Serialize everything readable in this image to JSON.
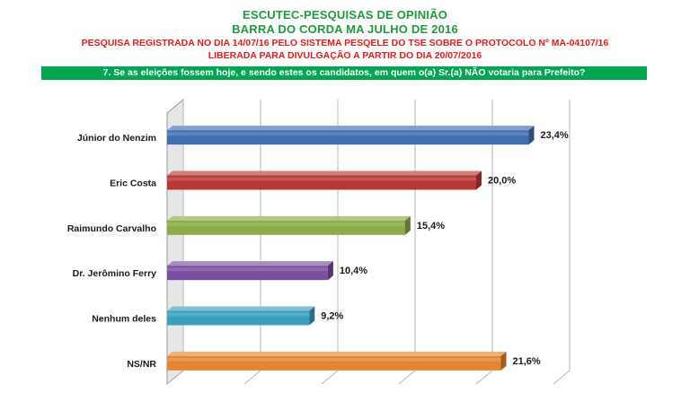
{
  "header": {
    "title_line1": "ESCUTEC-PESQUISAS DE OPINIÃO",
    "title_line2": "BARRA DO CORDA MA JULHO DE 2016",
    "registration": "PESQUISA REGISTRADA NO DIA 14/07/16 PELO SISTEMA PESQELE DO TSE SOBRE O PROTOCOLO Nº MA-04107/16",
    "release": "LIBERADA PARA DIVULGAÇÃO A PARTIR DO DIA 20/07/2016",
    "question": "7. Se as eleições fossem hoje, e sendo estes os candidatos, em quem o(a) Sr.(a) NÃO votaria para Prefeito?"
  },
  "colors": {
    "title_green": "#1f9a3c",
    "subtitle_red": "#e31b1b",
    "question_bg": "#00a650"
  },
  "chart_data": {
    "type": "bar",
    "orientation": "horizontal",
    "categories": [
      "Júnior do Nenzim",
      "Eric Costa",
      "Raimundo Carvalho",
      "Dr. Jerômino Ferry",
      "Nenhum deles",
      "NS/NR"
    ],
    "values": [
      23.4,
      20.0,
      15.4,
      10.4,
      9.2,
      21.6
    ],
    "labels": [
      "23,4%",
      "20,0%",
      "15,4%",
      "10,4%",
      "9,2%",
      "21,6%"
    ],
    "bar_colors": [
      "#3f6fb0",
      "#b83836",
      "#8bab45",
      "#7a4f9f",
      "#3a9fbc",
      "#e58432"
    ],
    "xlim": [
      0,
      25
    ],
    "grid": true,
    "style": "3d"
  }
}
